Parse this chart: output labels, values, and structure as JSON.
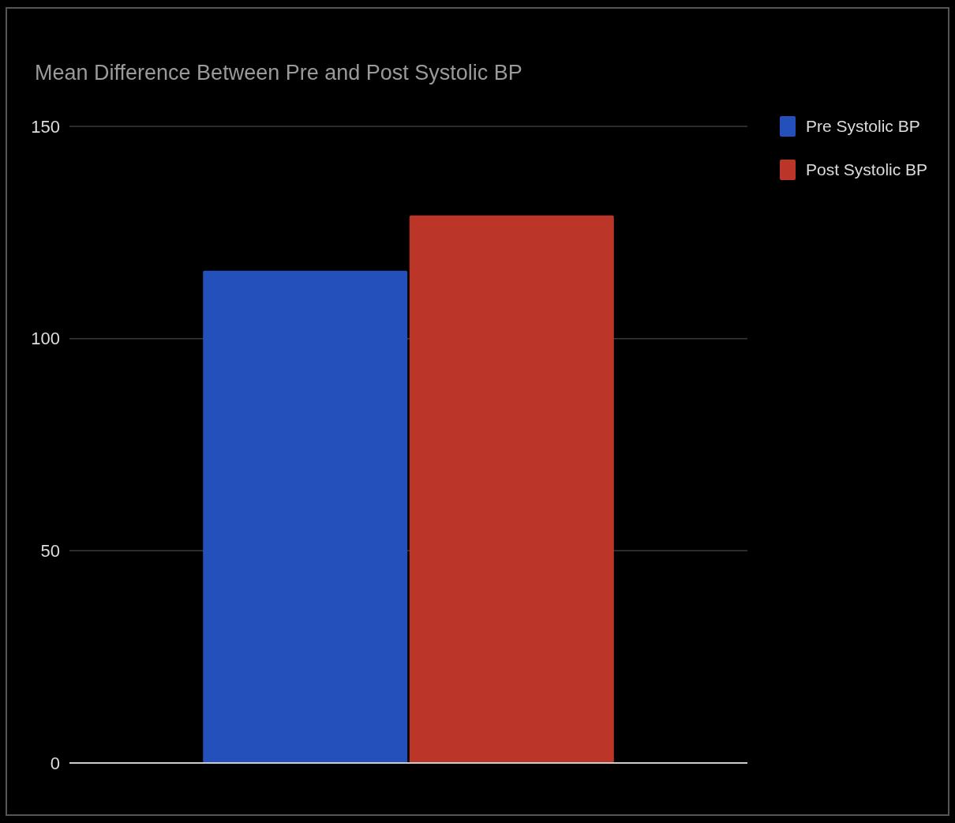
{
  "chart_data": {
    "type": "bar",
    "title": "Mean Difference Between Pre and Post Systolic BP",
    "categories": [
      null
    ],
    "series": [
      {
        "name": "Pre Systolic BP",
        "color": "#2350bb",
        "values": [
          116
        ]
      },
      {
        "name": "Post Systolic BP",
        "color": "#bb3628",
        "values": [
          129
        ]
      }
    ],
    "ylim": [
      0,
      150
    ],
    "yticks": [
      0,
      50,
      100,
      150
    ],
    "grid": "y",
    "legend": "top right"
  }
}
